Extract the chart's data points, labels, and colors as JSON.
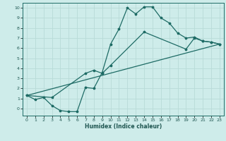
{
  "xlabel": "Humidex (Indice chaleur)",
  "bg_color": "#ceecea",
  "grid_color": "#b8dbd8",
  "line_color": "#1e6b65",
  "xlim": [
    -0.5,
    23.5
  ],
  "ylim": [
    -0.7,
    10.5
  ],
  "xticks": [
    0,
    1,
    2,
    3,
    4,
    5,
    6,
    7,
    8,
    9,
    10,
    11,
    12,
    13,
    14,
    15,
    16,
    17,
    18,
    19,
    20,
    21,
    22,
    23
  ],
  "yticks": [
    0,
    1,
    2,
    3,
    4,
    5,
    6,
    7,
    8,
    9,
    10
  ],
  "curve1_x": [
    0,
    1,
    2,
    3,
    4,
    5,
    6,
    7,
    8,
    9,
    10,
    11,
    12,
    13,
    14,
    15,
    16,
    17,
    18,
    19,
    20,
    21,
    22,
    23
  ],
  "curve1_y": [
    1.3,
    0.9,
    1.1,
    0.3,
    -0.2,
    -0.3,
    -0.3,
    2.1,
    2.0,
    3.6,
    6.4,
    7.9,
    10.0,
    9.4,
    10.1,
    10.1,
    9.0,
    8.5,
    7.5,
    7.0,
    7.1,
    6.7,
    6.6,
    6.4
  ],
  "curve2_x": [
    0,
    3,
    7,
    8,
    9,
    10,
    14,
    19,
    20,
    21,
    22,
    23
  ],
  "curve2_y": [
    1.3,
    1.1,
    3.5,
    3.8,
    3.5,
    4.3,
    7.6,
    5.9,
    7.0,
    6.7,
    6.6,
    6.4
  ],
  "curve3_x": [
    0,
    23
  ],
  "curve3_y": [
    1.3,
    6.4
  ],
  "xlabel_fontsize": 5.5,
  "tick_fontsize": 4.5,
  "lw": 0.9,
  "ms": 2.5
}
